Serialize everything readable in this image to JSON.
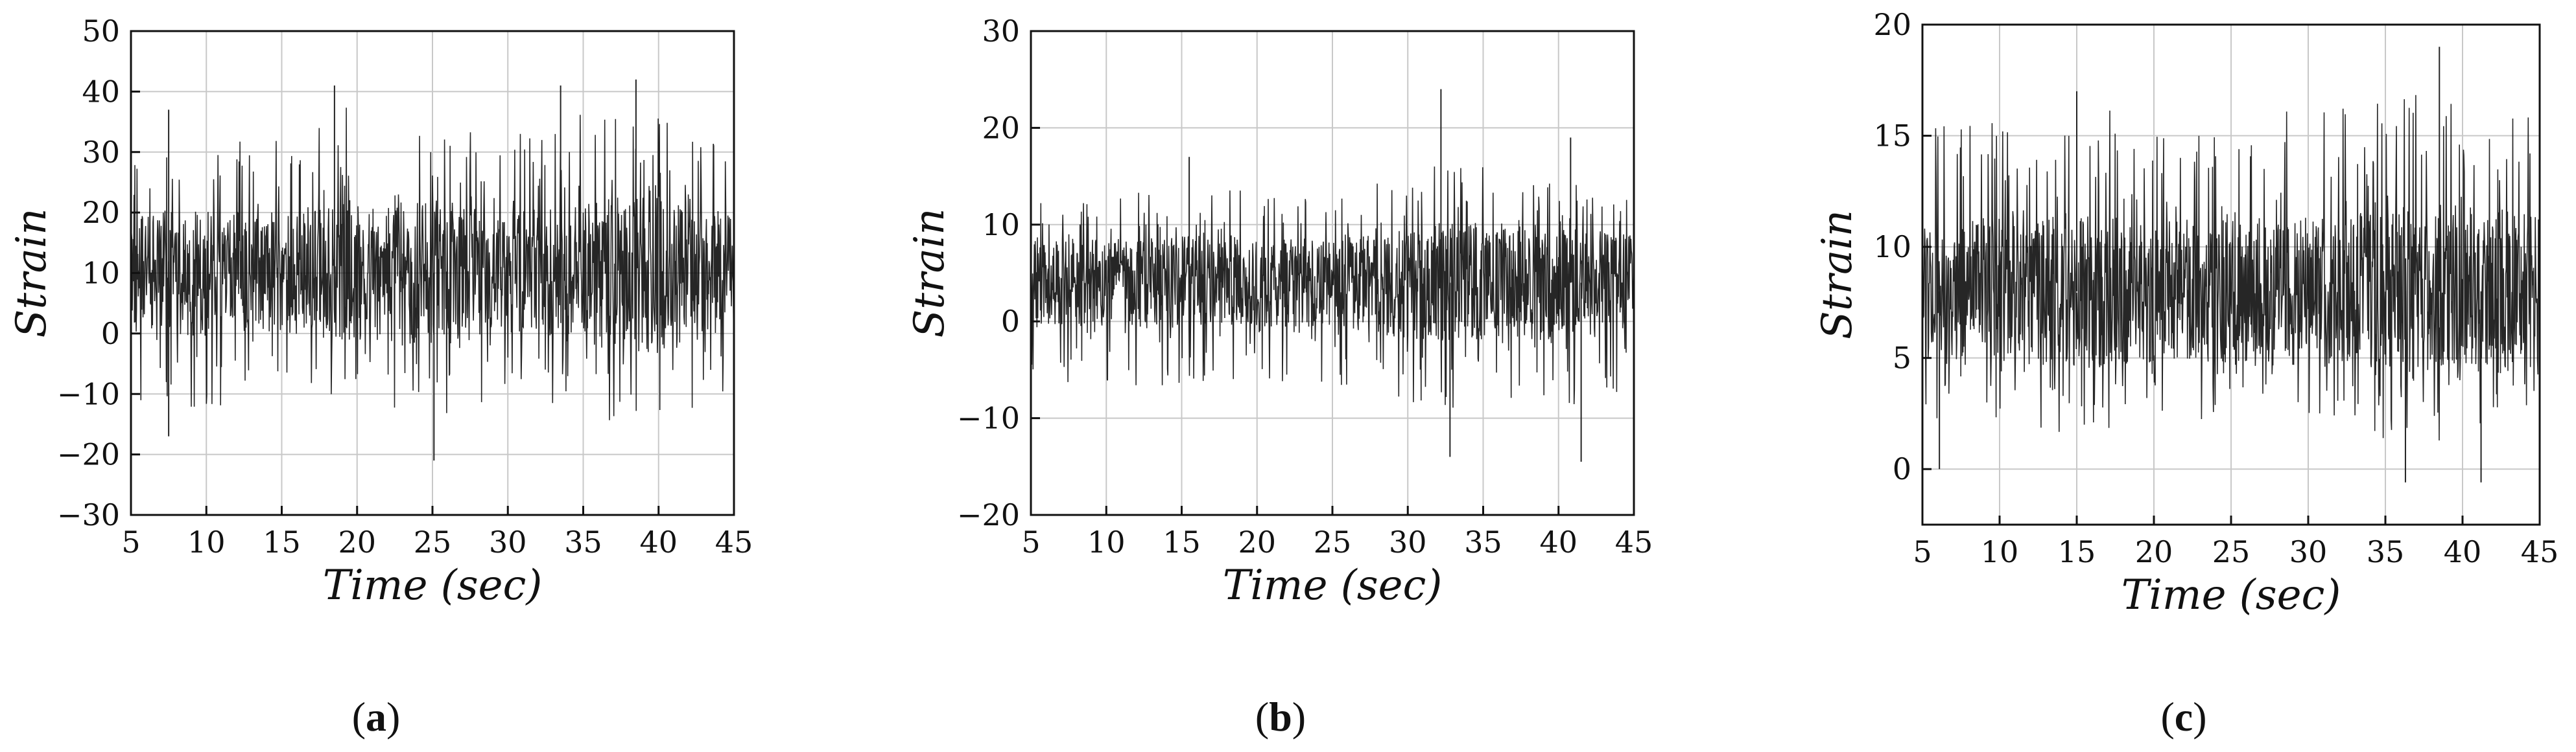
{
  "figure": {
    "panel_labels": [
      {
        "open": "(",
        "letter": "a",
        "close": ")"
      },
      {
        "open": "(",
        "letter": "b",
        "close": ")"
      },
      {
        "open": "(",
        "letter": "c",
        "close": ")"
      }
    ]
  },
  "chart_data": [
    {
      "type": "line",
      "panel": "a",
      "xlabel": "Time (sec)",
      "ylabel": "Strain",
      "xlim": [
        5,
        45
      ],
      "ylim": [
        -30,
        50
      ],
      "xticks": [
        5,
        10,
        15,
        20,
        25,
        30,
        35,
        40,
        45
      ],
      "yticks": [
        -30,
        -20,
        -10,
        0,
        10,
        20,
        30,
        40,
        50
      ],
      "grid": true,
      "line_color": "#000000",
      "series": [
        {
          "x": [
            5,
            10,
            15,
            20,
            25,
            30,
            35,
            40,
            45
          ],
          "mean": [
            10,
            10,
            10,
            10,
            10,
            10,
            10,
            10,
            10
          ],
          "upper_envelope": [
            30,
            33,
            33,
            40,
            35,
            34,
            38,
            42,
            30
          ],
          "lower_envelope": [
            -12,
            -14,
            -9,
            -13,
            -19,
            -12,
            -16,
            -17,
            -12
          ],
          "peaks": [
            {
              "x": 7.5,
              "y": 37
            },
            {
              "x": 18.5,
              "y": 41
            },
            {
              "x": 25.1,
              "y": -21
            },
            {
              "x": 33.5,
              "y": 41
            },
            {
              "x": 38.5,
              "y": 42
            },
            {
              "x": 7.5,
              "y": -17
            }
          ]
        }
      ]
    },
    {
      "type": "line",
      "panel": "b",
      "xlabel": "Time (sec)",
      "ylabel": "Strain",
      "xlim": [
        5,
        45
      ],
      "ylim": [
        -20,
        30
      ],
      "xticks": [
        5,
        10,
        15,
        20,
        25,
        30,
        35,
        40,
        45
      ],
      "yticks": [
        -20,
        -10,
        0,
        10,
        20,
        30
      ],
      "grid": true,
      "line_color": "#000000",
      "series": [
        {
          "x": [
            5,
            10,
            15,
            20,
            25,
            30,
            35,
            40,
            45
          ],
          "mean": [
            4,
            4,
            4,
            4,
            4,
            4,
            4,
            4,
            4
          ],
          "upper_envelope": [
            14,
            13,
            15,
            14,
            13,
            16,
            18,
            16,
            14
          ],
          "lower_envelope": [
            -7,
            -7,
            -8,
            -7,
            -7,
            -10,
            -10,
            -10,
            -8
          ],
          "peaks": [
            {
              "x": 32.2,
              "y": 24
            },
            {
              "x": 32.8,
              "y": -14
            },
            {
              "x": 41.5,
              "y": -14.5
            },
            {
              "x": 15.5,
              "y": 17
            },
            {
              "x": 40.8,
              "y": 19
            }
          ]
        }
      ]
    },
    {
      "type": "line",
      "panel": "c",
      "xlabel": "Time (sec)",
      "ylabel": "Strain",
      "xlim": [
        5,
        45
      ],
      "ylim": [
        -2.5,
        20
      ],
      "xticks": [
        5,
        10,
        15,
        20,
        25,
        30,
        35,
        40,
        45
      ],
      "yticks": [
        0,
        5,
        10,
        15,
        20
      ],
      "grid": true,
      "line_color": "#000000",
      "series": [
        {
          "x": [
            5,
            10,
            15,
            20,
            25,
            30,
            35,
            40,
            45
          ],
          "mean": [
            8,
            8,
            8,
            8,
            8,
            8,
            8,
            8,
            8
          ],
          "upper_envelope": [
            16,
            16,
            17,
            16,
            16,
            17,
            17,
            18,
            17
          ],
          "lower_envelope": [
            1,
            2,
            1,
            2,
            1,
            2,
            1,
            0.5,
            2
          ],
          "peaks": [
            {
              "x": 38.5,
              "y": 19
            },
            {
              "x": 36.3,
              "y": -0.6
            },
            {
              "x": 41.2,
              "y": -0.6
            },
            {
              "x": 6.1,
              "y": 0
            },
            {
              "x": 15,
              "y": 17
            }
          ]
        }
      ]
    }
  ]
}
